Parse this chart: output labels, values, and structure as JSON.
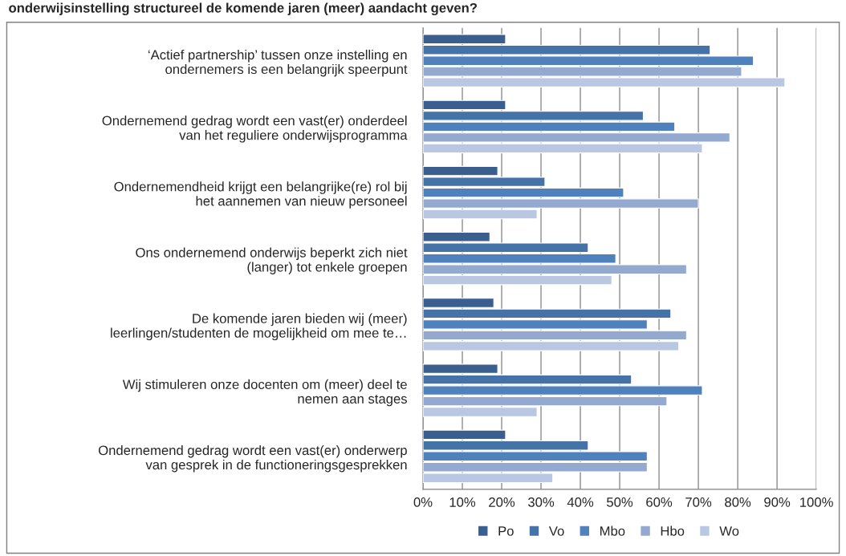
{
  "chart_data": {
    "type": "bar",
    "orientation": "horizontal",
    "title": "onderwijsinstelling structureel de komende jaren (meer) aandacht geven?",
    "categories": [
      "‘Actief partnership’ tussen onze instelling en\nondernemers is een belangrijk speerpunt",
      "Ondernemend gedrag wordt een vast(er) onderdeel\nvan het reguliere onderwijsprogramma",
      "Ondernemendheid krijgt een belangrijke(re) rol bij\nhet aannemen van nieuw personeel",
      "Ons ondernemend onderwijs beperkt zich niet\n(langer) tot enkele groepen",
      "De komende jaren bieden wij (meer)\nleerlingen/studenten de mogelijkheid om mee te…",
      "Wij stimuleren onze docenten om (meer) deel te\nnemen aan stages",
      "Ondernemend gedrag wordt een vast(er) onderwerp\nvan gesprek in de functioneringsgesprekken"
    ],
    "series": [
      {
        "name": "Po",
        "color": "#3a5f8f",
        "values": [
          21,
          21,
          19,
          17,
          18,
          19,
          21
        ]
      },
      {
        "name": "Vo",
        "color": "#4572a7",
        "values": [
          73,
          56,
          31,
          42,
          63,
          53,
          42
        ]
      },
      {
        "name": "Mbo",
        "color": "#4f81bd",
        "values": [
          84,
          64,
          51,
          49,
          57,
          71,
          57
        ]
      },
      {
        "name": "Hbo",
        "color": "#93a9cf",
        "values": [
          81,
          78,
          70,
          67,
          67,
          62,
          57
        ]
      },
      {
        "name": "Wo",
        "color": "#b9c7e2",
        "values": [
          92,
          71,
          29,
          48,
          65,
          29,
          33
        ]
      }
    ],
    "xlim": [
      0,
      100
    ],
    "xticks": [
      {
        "value": 0,
        "label": "0%"
      },
      {
        "value": 10,
        "label": "10%"
      },
      {
        "value": 20,
        "label": "20%"
      },
      {
        "value": 30,
        "label": "30%"
      },
      {
        "value": 40,
        "label": "40%"
      },
      {
        "value": 50,
        "label": "50%"
      },
      {
        "value": 60,
        "label": "60%"
      },
      {
        "value": 70,
        "label": "70%"
      },
      {
        "value": 80,
        "label": "80%"
      },
      {
        "value": 90,
        "label": "90%"
      },
      {
        "value": 100,
        "label": "100%"
      }
    ],
    "grid": "x",
    "legend": "bottom"
  }
}
